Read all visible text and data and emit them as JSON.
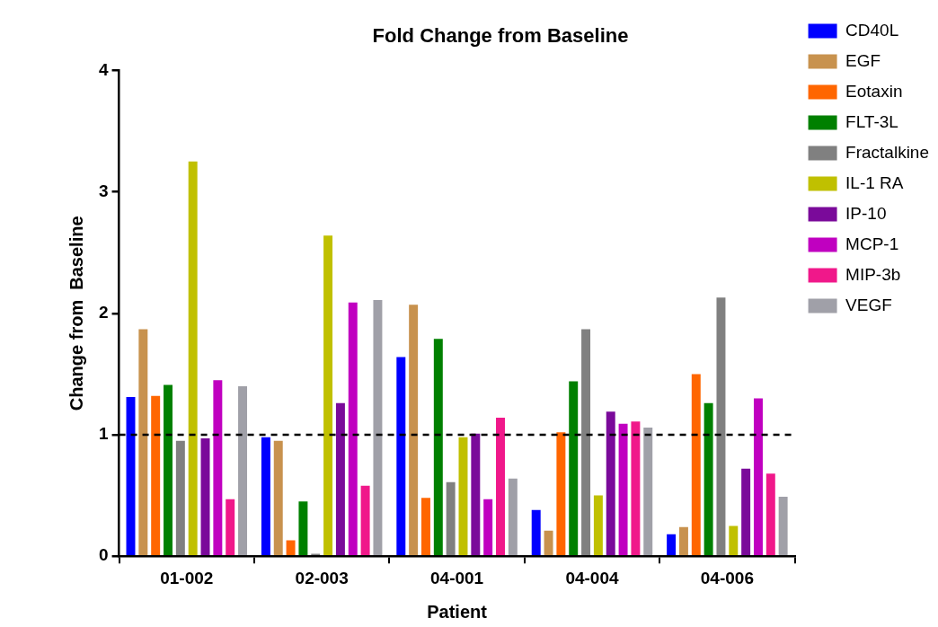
{
  "chart_data": {
    "type": "bar",
    "title": "Fold Change from Baseline",
    "xlabel": "Patient",
    "ylabel": "Change from  Baseline",
    "categories": [
      "01-002",
      "02-003",
      "04-001",
      "04-004",
      "04-006"
    ],
    "series": [
      {
        "name": "CD40L",
        "color": "#0000ff",
        "values": [
          1.31,
          0.98,
          1.64,
          0.38,
          0.18
        ]
      },
      {
        "name": "EGF",
        "color": "#c8924e",
        "values": [
          1.87,
          0.95,
          2.07,
          0.21,
          0.24
        ]
      },
      {
        "name": "Eotaxin",
        "color": "#ff6600",
        "values": [
          1.32,
          0.13,
          0.48,
          1.02,
          1.5
        ]
      },
      {
        "name": "FLT-3L",
        "color": "#008000",
        "values": [
          1.41,
          0.45,
          1.79,
          1.44,
          1.26
        ]
      },
      {
        "name": "Fractalkine",
        "color": "#808080",
        "values": [
          0.95,
          0.02,
          0.61,
          1.87,
          2.13
        ]
      },
      {
        "name": "IL-1 RA",
        "color": "#c0c000",
        "values": [
          3.25,
          2.64,
          0.98,
          0.5,
          0.25
        ]
      },
      {
        "name": "IP-10",
        "color": "#7a0a9a",
        "values": [
          0.97,
          1.26,
          1.01,
          1.19,
          0.72
        ]
      },
      {
        "name": "MCP-1",
        "color": "#c000c0",
        "values": [
          1.45,
          2.09,
          0.47,
          1.09,
          1.3
        ]
      },
      {
        "name": "MIP-3b",
        "color": "#f0188a",
        "values": [
          0.47,
          0.58,
          1.14,
          1.11,
          0.68
        ]
      },
      {
        "name": "VEGF",
        "color": "#a0a0a8",
        "values": [
          1.4,
          2.11,
          0.64,
          1.06,
          0.49
        ]
      }
    ],
    "ylim": [
      0,
      4
    ],
    "yticks": [
      0,
      1,
      2,
      3,
      4
    ],
    "grid": false,
    "legend": "right",
    "ref_lines": [
      {
        "axis": "y",
        "value": 1,
        "line_style": "dashed",
        "color": "#000000"
      }
    ]
  }
}
